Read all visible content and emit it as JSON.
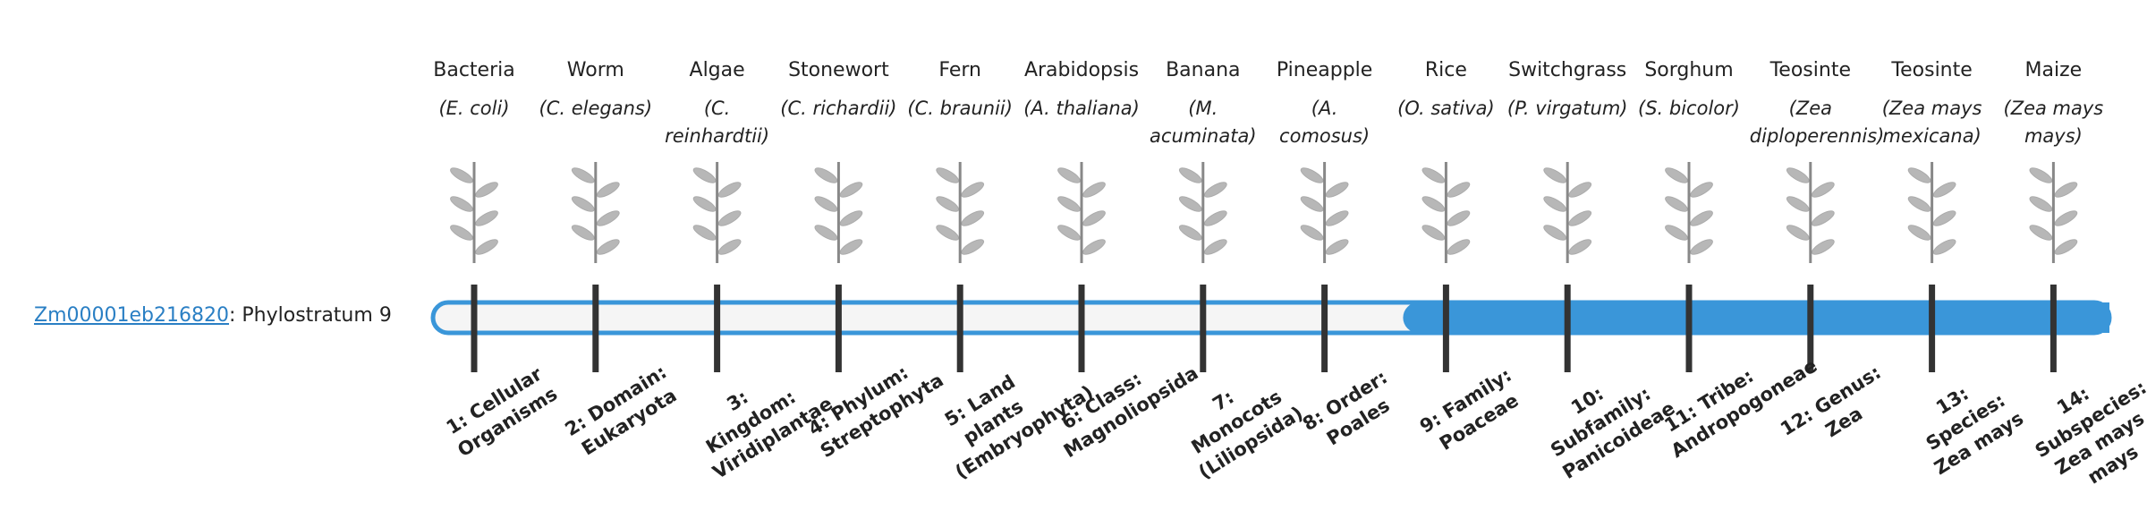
{
  "gene": {
    "id": "Zm00001eb216820",
    "label": ": Phylostratum",
    "phylostratum": 9
  },
  "organisms": [
    {
      "name": "Bacteria",
      "latin": "(E. coli)"
    },
    {
      "name": "Worm",
      "latin": "(C. elegans)"
    },
    {
      "name": "Algae",
      "latin": "(C. reinhardtii)"
    },
    {
      "name": "Stonewort",
      "latin": "(C. richardii)"
    },
    {
      "name": "Fern",
      "latin": "(C. braunii)"
    },
    {
      "name": "Arabidopsis",
      "latin": "(A. thaliana)"
    },
    {
      "name": "Banana",
      "latin": "(M. acuminata)"
    },
    {
      "name": "Pineapple",
      "latin": "(A. comosus)"
    },
    {
      "name": "Rice",
      "latin": "(O. sativa)"
    },
    {
      "name": "Switchgrass",
      "latin": "(P. virgatum)"
    },
    {
      "name": "Sorghum",
      "latin": "(S. bicolor)"
    },
    {
      "name": "Teosinte",
      "latin": "(Zea diploperennis)"
    },
    {
      "name": "Teosinte",
      "latin": "(Zea mays mexicana)"
    },
    {
      "name": "Maize",
      "latin": "(Zea mays mays)"
    }
  ],
  "strata": [
    "1: Cellular Organisms",
    "2: Domain: Eukaryota",
    "3: Kingdom: Viridiplantae",
    "4: Phylum: Streptophyta",
    "5: Land plants (Embryophyta)",
    "6: Class: Magnoliopsida",
    "7: Monocots (Liliopsida)",
    "8: Order: Poales",
    "9: Family: Poaceae",
    "10: Subfamily: Panicoideae",
    "11: Tribe: Andropogoneae",
    "12: Genus: Zea",
    "13: Species: Zea mays",
    "14: Subspecies: Zea mays mays"
  ]
}
